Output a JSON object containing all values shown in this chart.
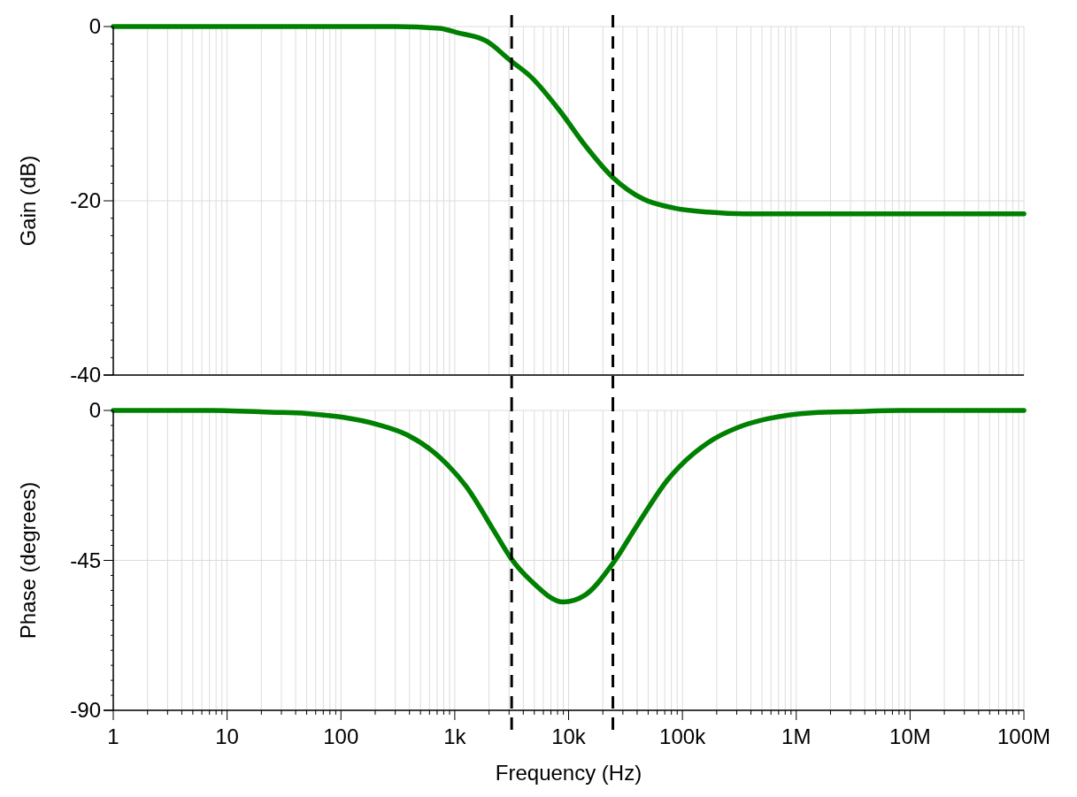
{
  "chart_data": [
    {
      "type": "line",
      "ylabel": "Gain (dB)",
      "log": "x",
      "grid": true,
      "tick_labels": "y",
      "line_style": "solid",
      "marker": "none",
      "xlim": [
        1,
        100000000
      ],
      "xticks": [
        {
          "value": 1,
          "label": null
        },
        {
          "value": 10,
          "label": null
        },
        {
          "value": 100,
          "label": null
        },
        {
          "value": 1000,
          "label": null
        },
        {
          "value": 10000,
          "label": null
        },
        {
          "value": 100000,
          "label": null
        },
        {
          "value": 1000000,
          "label": null
        },
        {
          "value": 10000000,
          "label": null
        },
        {
          "value": 100000000,
          "label": null
        },
        {
          "value": 2,
          "label": null
        },
        {
          "value": 3,
          "label": null
        },
        {
          "value": 4,
          "label": null
        },
        {
          "value": 5,
          "label": null
        },
        {
          "value": 6,
          "label": null
        },
        {
          "value": 7,
          "label": null
        },
        {
          "value": 8,
          "label": null
        },
        {
          "value": 9,
          "label": null
        },
        {
          "value": 20,
          "label": null
        },
        {
          "value": 30,
          "label": null
        },
        {
          "value": 40,
          "label": null
        },
        {
          "value": 50,
          "label": null
        },
        {
          "value": 60,
          "label": null
        },
        {
          "value": 70,
          "label": null
        },
        {
          "value": 80,
          "label": null
        },
        {
          "value": 90,
          "label": null
        },
        {
          "value": 200,
          "label": null
        },
        {
          "value": 300,
          "label": null
        },
        {
          "value": 400,
          "label": null
        },
        {
          "value": 500,
          "label": null
        },
        {
          "value": 600,
          "label": null
        },
        {
          "value": 700,
          "label": null
        },
        {
          "value": 800,
          "label": null
        },
        {
          "value": 900,
          "label": null
        },
        {
          "value": 2000,
          "label": null
        },
        {
          "value": 3000,
          "label": null
        },
        {
          "value": 4000,
          "label": null
        },
        {
          "value": 5000,
          "label": null
        },
        {
          "value": 6000,
          "label": null
        },
        {
          "value": 7000,
          "label": null
        },
        {
          "value": 8000,
          "label": null
        },
        {
          "value": 9000,
          "label": null
        },
        {
          "value": 20000,
          "label": null
        },
        {
          "value": 30000,
          "label": null
        },
        {
          "value": 40000,
          "label": null
        },
        {
          "value": 50000,
          "label": null
        },
        {
          "value": 60000,
          "label": null
        },
        {
          "value": 70000,
          "label": null
        },
        {
          "value": 80000,
          "label": null
        },
        {
          "value": 90000,
          "label": null
        },
        {
          "value": 200000,
          "label": null
        },
        {
          "value": 300000,
          "label": null
        },
        {
          "value": 400000,
          "label": null
        },
        {
          "value": 500000,
          "label": null
        },
        {
          "value": 600000,
          "label": null
        },
        {
          "value": 700000,
          "label": null
        },
        {
          "value": 800000,
          "label": null
        },
        {
          "value": 900000,
          "label": null
        },
        {
          "value": 2000000,
          "label": null
        },
        {
          "value": 3000000,
          "label": null
        },
        {
          "value": 4000000,
          "label": null
        },
        {
          "value": 5000000,
          "label": null
        },
        {
          "value": 6000000,
          "label": null
        },
        {
          "value": 7000000,
          "label": null
        },
        {
          "value": 8000000,
          "label": null
        },
        {
          "value": 9000000,
          "label": null
        },
        {
          "value": 20000000,
          "label": null
        },
        {
          "value": 30000000,
          "label": null
        },
        {
          "value": 40000000,
          "label": null
        },
        {
          "value": 50000000,
          "label": null
        },
        {
          "value": 60000000,
          "label": null
        },
        {
          "value": 70000000,
          "label": null
        },
        {
          "value": 80000000,
          "label": null
        },
        {
          "value": 90000000,
          "label": null
        }
      ],
      "ylim": [
        -40,
        0
      ],
      "yticks": [
        0,
        -20,
        -40,
        {
          "value": -2,
          "label": null
        },
        {
          "value": -4,
          "label": null
        },
        {
          "value": -6,
          "label": null
        },
        {
          "value": -8,
          "label": null
        },
        {
          "value": -10,
          "label": null
        },
        {
          "value": -12,
          "label": null
        },
        {
          "value": -14,
          "label": null
        },
        {
          "value": -16,
          "label": null
        },
        {
          "value": -18,
          "label": null
        },
        {
          "value": -22,
          "label": null
        },
        {
          "value": -24,
          "label": null
        },
        {
          "value": -26,
          "label": null
        },
        {
          "value": -28,
          "label": null
        },
        {
          "value": -30,
          "label": null
        },
        {
          "value": -32,
          "label": null
        },
        {
          "value": -34,
          "label": null
        },
        {
          "value": -36,
          "label": null
        },
        {
          "value": -38,
          "label": null
        }
      ],
      "ref_lines": [
        {
          "axis": "x",
          "value": 3160,
          "color": "#000000",
          "line_style": "dashed"
        },
        {
          "axis": "x",
          "value": 24500,
          "color": "#000000",
          "line_style": "dashed"
        }
      ],
      "series": [
        {
          "color": "#008000",
          "x": [
            1,
            300,
            734,
            1050,
            1910,
            3080,
            4690,
            8510,
            13700,
            24400,
            45400,
            82600,
            169000,
            347000,
            100000000
          ],
          "values": [
            0,
            0,
            -0.2,
            -0.7,
            -1.7,
            -3.9,
            -5.8,
            -9.8,
            -13.5,
            -17.3,
            -19.8,
            -20.8,
            -21.3,
            -21.5,
            -21.5
          ]
        }
      ]
    },
    {
      "type": "line",
      "ylabel": "Phase (degrees)",
      "xlabel": "Frequency (Hz)",
      "log": "x",
      "grid": true,
      "line_style": "solid",
      "marker": "none",
      "xlim": [
        1,
        100000000
      ],
      "xticks": [
        {
          "value": 1,
          "label": "1"
        },
        {
          "value": 10,
          "label": "10"
        },
        {
          "value": 100,
          "label": "100"
        },
        {
          "value": 1000,
          "label": "1k"
        },
        {
          "value": 10000,
          "label": "10k"
        },
        {
          "value": 100000,
          "label": "100k"
        },
        {
          "value": 1000000,
          "label": "1M"
        },
        {
          "value": 10000000,
          "label": "10M"
        },
        {
          "value": 100000000,
          "label": "100M"
        },
        {
          "value": 2,
          "label": null
        },
        {
          "value": 3,
          "label": null
        },
        {
          "value": 4,
          "label": null
        },
        {
          "value": 5,
          "label": null
        },
        {
          "value": 6,
          "label": null
        },
        {
          "value": 7,
          "label": null
        },
        {
          "value": 8,
          "label": null
        },
        {
          "value": 9,
          "label": null
        },
        {
          "value": 20,
          "label": null
        },
        {
          "value": 30,
          "label": null
        },
        {
          "value": 40,
          "label": null
        },
        {
          "value": 50,
          "label": null
        },
        {
          "value": 60,
          "label": null
        },
        {
          "value": 70,
          "label": null
        },
        {
          "value": 80,
          "label": null
        },
        {
          "value": 90,
          "label": null
        },
        {
          "value": 200,
          "label": null
        },
        {
          "value": 300,
          "label": null
        },
        {
          "value": 400,
          "label": null
        },
        {
          "value": 500,
          "label": null
        },
        {
          "value": 600,
          "label": null
        },
        {
          "value": 700,
          "label": null
        },
        {
          "value": 800,
          "label": null
        },
        {
          "value": 900,
          "label": null
        },
        {
          "value": 2000,
          "label": null
        },
        {
          "value": 3000,
          "label": null
        },
        {
          "value": 4000,
          "label": null
        },
        {
          "value": 5000,
          "label": null
        },
        {
          "value": 6000,
          "label": null
        },
        {
          "value": 7000,
          "label": null
        },
        {
          "value": 8000,
          "label": null
        },
        {
          "value": 9000,
          "label": null
        },
        {
          "value": 20000,
          "label": null
        },
        {
          "value": 30000,
          "label": null
        },
        {
          "value": 40000,
          "label": null
        },
        {
          "value": 50000,
          "label": null
        },
        {
          "value": 60000,
          "label": null
        },
        {
          "value": 70000,
          "label": null
        },
        {
          "value": 80000,
          "label": null
        },
        {
          "value": 90000,
          "label": null
        },
        {
          "value": 200000,
          "label": null
        },
        {
          "value": 300000,
          "label": null
        },
        {
          "value": 400000,
          "label": null
        },
        {
          "value": 500000,
          "label": null
        },
        {
          "value": 600000,
          "label": null
        },
        {
          "value": 700000,
          "label": null
        },
        {
          "value": 800000,
          "label": null
        },
        {
          "value": 900000,
          "label": null
        },
        {
          "value": 2000000,
          "label": null
        },
        {
          "value": 3000000,
          "label": null
        },
        {
          "value": 4000000,
          "label": null
        },
        {
          "value": 5000000,
          "label": null
        },
        {
          "value": 6000000,
          "label": null
        },
        {
          "value": 7000000,
          "label": null
        },
        {
          "value": 8000000,
          "label": null
        },
        {
          "value": 9000000,
          "label": null
        },
        {
          "value": 20000000,
          "label": null
        },
        {
          "value": 30000000,
          "label": null
        },
        {
          "value": 40000000,
          "label": null
        },
        {
          "value": 50000000,
          "label": null
        },
        {
          "value": 60000000,
          "label": null
        },
        {
          "value": 70000000,
          "label": null
        },
        {
          "value": 80000000,
          "label": null
        },
        {
          "value": 90000000,
          "label": null
        }
      ],
      "ylim": [
        -90,
        0
      ],
      "yticks": [
        0,
        -45,
        -90,
        {
          "value": -4.5,
          "label": null
        },
        {
          "value": -9,
          "label": null
        },
        {
          "value": -13.5,
          "label": null
        },
        {
          "value": -18,
          "label": null
        },
        {
          "value": -22.5,
          "label": null
        },
        {
          "value": -27,
          "label": null
        },
        {
          "value": -31.5,
          "label": null
        },
        {
          "value": -36,
          "label": null
        },
        {
          "value": -40.5,
          "label": null
        },
        {
          "value": -49.5,
          "label": null
        },
        {
          "value": -54,
          "label": null
        },
        {
          "value": -58.5,
          "label": null
        },
        {
          "value": -63,
          "label": null
        },
        {
          "value": -67.5,
          "label": null
        },
        {
          "value": -72,
          "label": null
        },
        {
          "value": -76.5,
          "label": null
        },
        {
          "value": -81,
          "label": null
        },
        {
          "value": -85.5,
          "label": null
        }
      ],
      "ref_lines": [
        {
          "axis": "x",
          "value": 3160,
          "color": "#000000",
          "line_style": "dashed"
        },
        {
          "axis": "x",
          "value": 24500,
          "color": "#000000",
          "line_style": "dashed"
        }
      ],
      "series": [
        {
          "color": "#008000",
          "x": [
            1,
            7.4,
            24,
            50,
            102,
            209,
            380,
            734,
            1260,
            2290,
            3140,
            4690,
            9040,
            13700,
            24500,
            40300,
            73100,
            169000,
            307000,
            560000,
            1370000,
            3360000,
            10000000,
            100000000
          ],
          "values": [
            0,
            0,
            -0.5,
            -0.9,
            -2,
            -4.2,
            -7.3,
            -14,
            -22.8,
            -37,
            -44.5,
            -51.2,
            -57.5,
            -55.6,
            -45.9,
            -34.3,
            -21.1,
            -9.6,
            -5.1,
            -2.5,
            -0.7,
            -0.3,
            0,
            0
          ]
        }
      ]
    }
  ]
}
